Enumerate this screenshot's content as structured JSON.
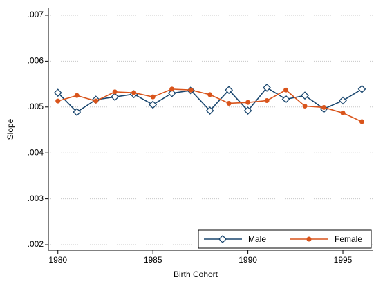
{
  "chart_data": {
    "type": "line",
    "x_label": "Birth Cohort",
    "y_label": "Slope",
    "x": [
      1980,
      1981,
      1982,
      1983,
      1984,
      1985,
      1986,
      1987,
      1988,
      1989,
      1990,
      1991,
      1992,
      1993,
      1994,
      1995,
      1996
    ],
    "series": [
      {
        "name": "Male",
        "color": "#1a476f",
        "marker": "diamond",
        "values": [
          0.00531,
          0.00489,
          0.00516,
          0.00522,
          0.00528,
          0.00505,
          0.0053,
          0.00536,
          0.00492,
          0.00537,
          0.00492,
          0.00542,
          0.00517,
          0.00525,
          0.00496,
          0.00514,
          0.00539
        ]
      },
      {
        "name": "Female",
        "color": "#d9541b",
        "marker": "circle",
        "values": [
          0.00513,
          0.00525,
          0.00513,
          0.00533,
          0.00531,
          0.00522,
          0.00539,
          0.00537,
          0.00527,
          0.00508,
          0.0051,
          0.00514,
          0.00537,
          0.00502,
          0.00499,
          0.00487,
          0.00468
        ]
      }
    ],
    "xlim": [
      1979.5,
      1996.6
    ],
    "xticks": [
      1980,
      1985,
      1990,
      1995
    ],
    "ylim": [
      0.00188,
      0.00715
    ],
    "yticks": [
      {
        "value": 0.002,
        "label": ".002"
      },
      {
        "value": 0.003,
        "label": ".003"
      },
      {
        "value": 0.004,
        "label": ".004"
      },
      {
        "value": 0.005,
        "label": ".005"
      },
      {
        "value": 0.006,
        "label": ".006"
      },
      {
        "value": 0.007,
        "label": ".007"
      }
    ],
    "grid": true,
    "legend": "lower right"
  }
}
